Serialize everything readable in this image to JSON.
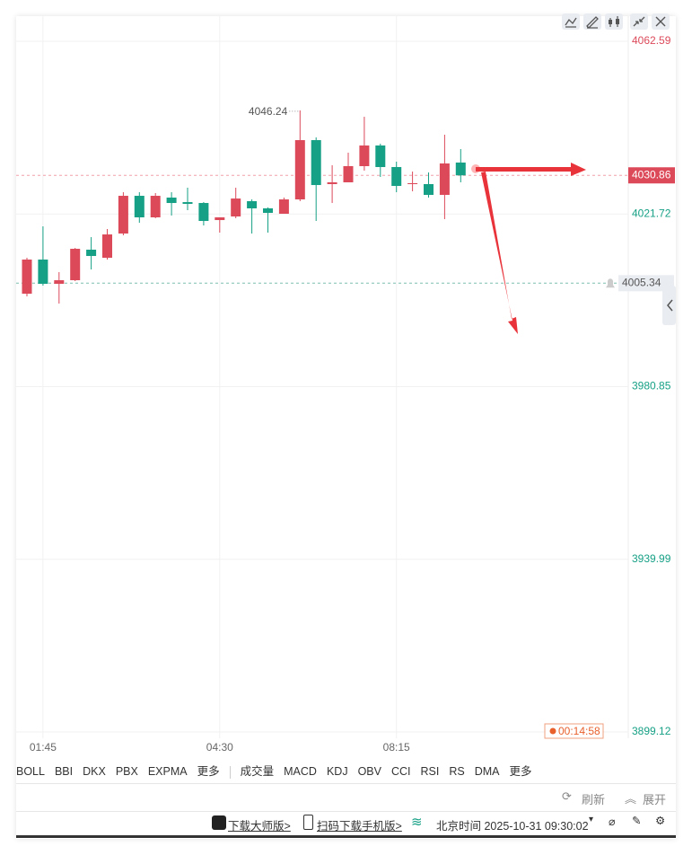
{
  "chart_data": {
    "type": "candlestick",
    "categories": [
      null,
      "01:45",
      null,
      null,
      null,
      null,
      null,
      null,
      null,
      null,
      null,
      null,
      "04:30",
      null,
      null,
      null,
      null,
      null,
      null,
      null,
      null,
      null,
      null,
      "08:15",
      null,
      null,
      null,
      null
    ],
    "open": [
      4002.85,
      4010.93,
      4005.19,
      4006.04,
      4013.27,
      4011.35,
      4017.09,
      4026.02,
      4020.92,
      4025.6,
      4024.53,
      4024.32,
      4020.28,
      4021.13,
      4024.75,
      4023.05,
      4021.77,
      4025.17,
      4039.2,
      4028.79,
      4029.21,
      4033.04,
      4037.93,
      4032.83,
      4028.79,
      4028.79,
      4026.24,
      4033.89
    ],
    "high": [
      4011.35,
      4018.79,
      4007.95,
      4013.69,
      4016.24,
      4018.16,
      4026.87,
      4026.87,
      4026.66,
      4026.87,
      4027.94,
      4024.53,
      4020.92,
      4027.94,
      4025.17,
      4023.26,
      4025.6,
      4046.24,
      4039.84,
      4033.25,
      4036.23,
      4044.73,
      4038.35,
      4034.1,
      4031.76,
      4031.55,
      4040.48,
      4037.08
    ],
    "low": [
      4002.21,
      4004.76,
      4000.51,
      4005.83,
      4008.59,
      4010.93,
      4016.67,
      4019.64,
      4020.71,
      4021.35,
      4022.62,
      4019.01,
      4017.31,
      4020.71,
      4017.09,
      4017.31,
      4021.77,
      4024.75,
      4020.07,
      4024.32,
      4029.21,
      4031.98,
      4030.49,
      4026.87,
      4027.09,
      4025.6,
      4020.5,
      4029.21
    ],
    "close": [
      4010.93,
      4005.19,
      4006.04,
      4013.48,
      4011.78,
      4016.88,
      4026.02,
      4020.92,
      4026.02,
      4024.32,
      4024.11,
      4020.07,
      4020.92,
      4025.38,
      4023.05,
      4021.98,
      4025.17,
      4039.2,
      4028.57,
      4029.21,
      4033.04,
      4037.93,
      4032.83,
      4028.36,
      4029.0,
      4026.24,
      4033.68,
      4030.86
    ],
    "up_color": "#dc4a5a",
    "down_color": "#16a085",
    "alert_line": 4005.34,
    "countdown": "00:14:58",
    "ylim": [
      3897.63,
      4068.54
    ],
    "yticks": [
      4062.59,
      4021.72,
      3980.85,
      3939.99,
      3899.12
    ],
    "grid": true
  },
  "indicator_tabs": [
    "BOLL",
    "BBI",
    "DKX",
    "PBX",
    "EXPMA",
    "更多"
  ],
  "sub_tabs": [
    "成交量",
    "MACD",
    "KDJ",
    "OBV",
    "CCI",
    "RSI",
    "RS",
    "DMA",
    "更多"
  ],
  "actions": [
    "刷新",
    "展开"
  ],
  "footer": {
    "download": "下载大师版>",
    "mobile": "扫码下载手机版>",
    "time": "北京时间 2025-10-31 09:30:02"
  }
}
